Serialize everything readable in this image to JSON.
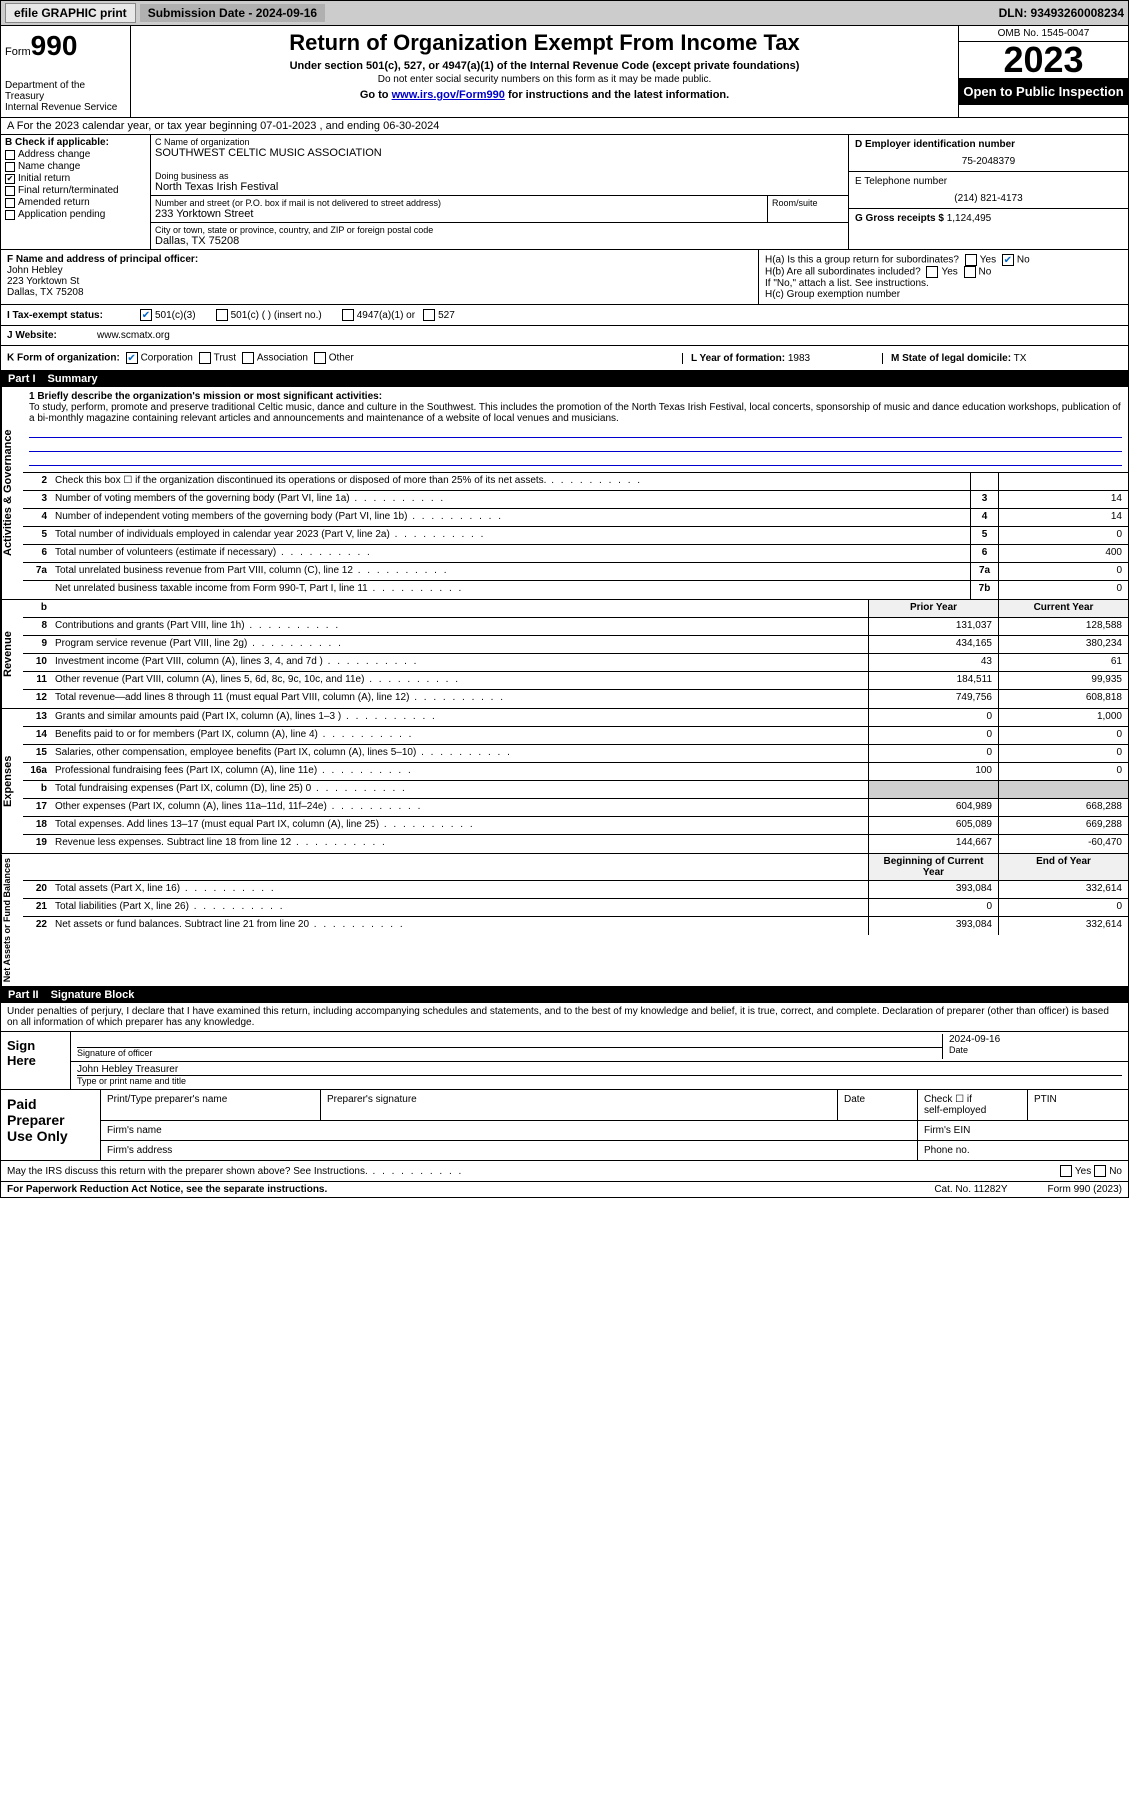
{
  "topbar": {
    "efile": "efile GRAPHIC print",
    "subdate_label": "Submission Date - 2024-09-16",
    "dln_label": "DLN: 93493260008234"
  },
  "header": {
    "form_word": "Form",
    "form_num": "990",
    "title": "Return of Organization Exempt From Income Tax",
    "sub": "Under section 501(c), 527, or 4947(a)(1) of the Internal Revenue Code (except private foundations)",
    "note1": "Do not enter social security numbers on this form as it may be made public.",
    "note2_pre": "Go to ",
    "note2_link": "www.irs.gov/Form990",
    "note2_post": " for instructions and the latest information.",
    "dept": "Department of the Treasury\nInternal Revenue Service",
    "omb": "OMB No. 1545-0047",
    "year": "2023",
    "openpub": "Open to Public Inspection"
  },
  "row_a": "A For the 2023 calendar year, or tax year beginning 07-01-2023    , and ending 06-30-2024",
  "box_b": {
    "label": "B Check if applicable:",
    "items": [
      "Address change",
      "Name change",
      "Initial return",
      "Final return/terminated",
      "Amended return",
      "Application pending"
    ],
    "checked_idx": 2
  },
  "box_c": {
    "name_label": "C Name of organization",
    "name": "SOUTHWEST CELTIC MUSIC ASSOCIATION",
    "dba_label": "Doing business as",
    "dba": "North Texas Irish Festival",
    "addr_label": "Number and street (or P.O. box if mail is not delivered to street address)",
    "room_label": "Room/suite",
    "addr": "233 Yorktown Street",
    "city_label": "City or town, state or province, country, and ZIP or foreign postal code",
    "city": "Dallas, TX  75208"
  },
  "box_d": {
    "ein_label": "D Employer identification number",
    "ein": "75-2048379",
    "tel_label": "E Telephone number",
    "tel": "(214) 821-4173",
    "gross_label": "G Gross receipts $",
    "gross": "1,124,495"
  },
  "box_f": {
    "label": "F  Name and address of principal officer:",
    "name": "John Hebley",
    "addr1": "223 Yorktown St",
    "addr2": "Dallas, TX  75208"
  },
  "box_h": {
    "ha": "H(a)  Is this a group return for subordinates?",
    "hb": "H(b)  Are all subordinates included?",
    "hb_note": "If \"No,\" attach a list. See instructions.",
    "hc": "H(c)  Group exemption number",
    "yes": "Yes",
    "no": "No"
  },
  "row_i": {
    "label": "I    Tax-exempt status:",
    "opt1": "501(c)(3)",
    "opt2": "501(c) (  ) (insert no.)",
    "opt3": "4947(a)(1) or",
    "opt4": "527"
  },
  "row_j": {
    "label": "J   Website:",
    "val": "www.scmatx.org"
  },
  "row_k": {
    "label": "K Form of organization:",
    "opts": [
      "Corporation",
      "Trust",
      "Association",
      "Other"
    ],
    "yof_label": "L Year of formation:",
    "yof": "1983",
    "domicile_label": "M State of legal domicile:",
    "domicile": "TX"
  },
  "part1": {
    "num": "Part I",
    "title": "Summary"
  },
  "mission": {
    "label": "1   Briefly describe the organization's mission or most significant activities:",
    "text": "To study, perform, promote and preserve traditional Celtic music, dance and culture in the Southwest. This includes the promotion of the North Texas Irish Festival, local concerts, sponsorship of music and dance education workshops, publication of a bi-monthly magazine containing relevant articles and announcements and maintenance of a website of local venues and musicians."
  },
  "vtabs": {
    "gov": "Activities & Governance",
    "rev": "Revenue",
    "exp": "Expenses",
    "net": "Net Assets or Fund Balances"
  },
  "lines_gov": [
    {
      "n": "2",
      "d": "Check this box ☐ if the organization discontinued its operations or disposed of more than 25% of its net assets.",
      "b": "",
      "v": ""
    },
    {
      "n": "3",
      "d": "Number of voting members of the governing body (Part VI, line 1a)",
      "b": "3",
      "v": "14"
    },
    {
      "n": "4",
      "d": "Number of independent voting members of the governing body (Part VI, line 1b)",
      "b": "4",
      "v": "14"
    },
    {
      "n": "5",
      "d": "Total number of individuals employed in calendar year 2023 (Part V, line 2a)",
      "b": "5",
      "v": "0"
    },
    {
      "n": "6",
      "d": "Total number of volunteers (estimate if necessary)",
      "b": "6",
      "v": "400"
    },
    {
      "n": "7a",
      "d": "Total unrelated business revenue from Part VIII, column (C), line 12",
      "b": "7a",
      "v": "0"
    },
    {
      "n": "",
      "d": "Net unrelated business taxable income from Form 990-T, Part I, line 11",
      "b": "7b",
      "v": "0"
    }
  ],
  "col_hdrs": {
    "prior": "Prior Year",
    "current": "Current Year",
    "boy": "Beginning of Current Year",
    "eoy": "End of Year"
  },
  "lines_rev": [
    {
      "n": "8",
      "d": "Contributions and grants (Part VIII, line 1h)",
      "p": "131,037",
      "c": "128,588"
    },
    {
      "n": "9",
      "d": "Program service revenue (Part VIII, line 2g)",
      "p": "434,165",
      "c": "380,234"
    },
    {
      "n": "10",
      "d": "Investment income (Part VIII, column (A), lines 3, 4, and 7d )",
      "p": "43",
      "c": "61"
    },
    {
      "n": "11",
      "d": "Other revenue (Part VIII, column (A), lines 5, 6d, 8c, 9c, 10c, and 11e)",
      "p": "184,511",
      "c": "99,935"
    },
    {
      "n": "12",
      "d": "Total revenue—add lines 8 through 11 (must equal Part VIII, column (A), line 12)",
      "p": "749,756",
      "c": "608,818"
    }
  ],
  "lines_exp": [
    {
      "n": "13",
      "d": "Grants and similar amounts paid (Part IX, column (A), lines 1–3 )",
      "p": "0",
      "c": "1,000"
    },
    {
      "n": "14",
      "d": "Benefits paid to or for members (Part IX, column (A), line 4)",
      "p": "0",
      "c": "0"
    },
    {
      "n": "15",
      "d": "Salaries, other compensation, employee benefits (Part IX, column (A), lines 5–10)",
      "p": "0",
      "c": "0"
    },
    {
      "n": "16a",
      "d": "Professional fundraising fees (Part IX, column (A), line 11e)",
      "p": "100",
      "c": "0"
    },
    {
      "n": "b",
      "d": "Total fundraising expenses (Part IX, column (D), line 25) 0",
      "p": "",
      "c": "",
      "grey": true
    },
    {
      "n": "17",
      "d": "Other expenses (Part IX, column (A), lines 11a–11d, 11f–24e)",
      "p": "604,989",
      "c": "668,288"
    },
    {
      "n": "18",
      "d": "Total expenses. Add lines 13–17 (must equal Part IX, column (A), line 25)",
      "p": "605,089",
      "c": "669,288"
    },
    {
      "n": "19",
      "d": "Revenue less expenses. Subtract line 18 from line 12",
      "p": "144,667",
      "c": "-60,470"
    }
  ],
  "lines_net": [
    {
      "n": "20",
      "d": "Total assets (Part X, line 16)",
      "p": "393,084",
      "c": "332,614"
    },
    {
      "n": "21",
      "d": "Total liabilities (Part X, line 26)",
      "p": "0",
      "c": "0"
    },
    {
      "n": "22",
      "d": "Net assets or fund balances. Subtract line 21 from line 20",
      "p": "393,084",
      "c": "332,614"
    }
  ],
  "part2": {
    "num": "Part II",
    "title": "Signature Block"
  },
  "penalty": "Under penalties of perjury, I declare that I have examined this return, including accompanying schedules and statements, and to the best of my knowledge and belief, it is true, correct, and complete. Declaration of preparer (other than officer) is based on all information of which preparer has any knowledge.",
  "sign": {
    "here": "Sign Here",
    "sig_label": "Signature of officer",
    "date": "2024-09-16",
    "date_label": "Date",
    "name": "John Hebley  Treasurer",
    "name_label": "Type or print name and title"
  },
  "prep": {
    "label": "Paid Preparer Use Only",
    "c1": "Print/Type preparer's name",
    "c2": "Preparer's signature",
    "c3": "Date",
    "c4a": "Check ☐ if",
    "c4b": "self-employed",
    "c5": "PTIN",
    "firm": "Firm's name",
    "firmein": "Firm's EIN",
    "firmaddr": "Firm's address",
    "phone": "Phone no."
  },
  "discuss": "May the IRS discuss this return with the preparer shown above? See Instructions.",
  "footer": {
    "pra": "For Paperwork Reduction Act Notice, see the separate instructions.",
    "cat": "Cat. No. 11282Y",
    "form": "Form 990 (2023)"
  }
}
